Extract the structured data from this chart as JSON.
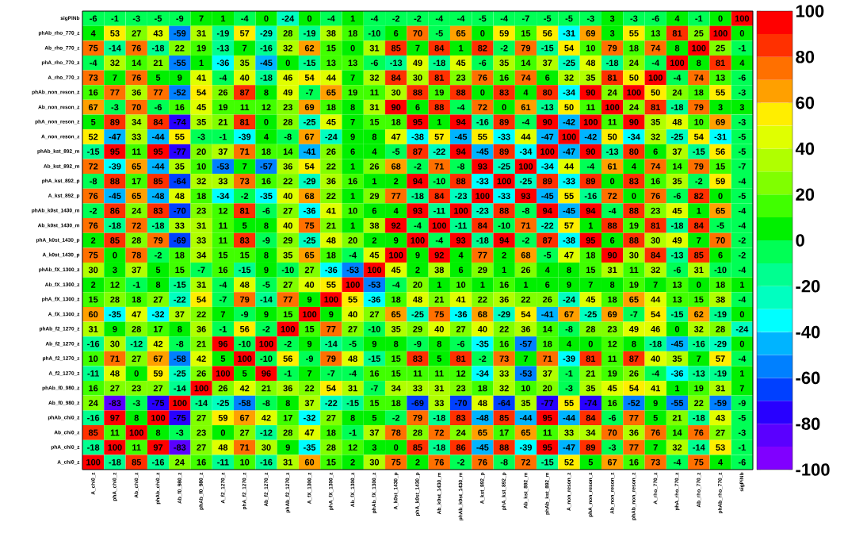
{
  "chart_data": {
    "type": "heatmap",
    "categories": [
      "A_chi0_z",
      "phA_chi0_z",
      "Ab_chi0_z",
      "phAb_chi0_z",
      "Ab_f0_980_z",
      "phAb_f0_980_z",
      "A_f2_1270_z",
      "phA_f2_1270_z",
      "Ab_f2_1270_z",
      "phAb_f2_1270_z",
      "A_fX_1300_z",
      "phA_fX_1300_z",
      "Ab_fX_1300_z",
      "phAb_fX_1300_z",
      "A_k0st_1430_p",
      "phA_k0st_1430_p",
      "Ab_k0st_1430_m",
      "phAb_k0st_1430_m",
      "A_kst_892_p",
      "phA_kst_892_p",
      "Ab_kst_892_m",
      "phAb_kst_892_m",
      "A_non_reson_z",
      "phA_non_reson_z",
      "Ab_non_reson_z",
      "phAb_non_reson_z",
      "A_rho_770_z",
      "phA_rho_770_z",
      "Ab_rho_770_z",
      "phAb_rho_770_z",
      "sigPiNb"
    ],
    "y_categories": [
      "sigPiNb",
      "phAb_rho_770_z",
      "Ab_rho_770_z",
      "phA_rho_770_z",
      "A_rho_770_z",
      "phAb_non_reson_z",
      "Ab_non_reson_z",
      "phA_non_reson_z",
      "A_non_reson_z",
      "phAb_kst_892_m",
      "Ab_kst_892_m",
      "phA_kst_892_p",
      "A_kst_892_p",
      "phAb_k0st_1430_m",
      "Ab_k0st_1430_m",
      "phA_k0st_1430_p",
      "A_k0st_1430_p",
      "phAb_fX_1300_z",
      "Ab_fX_1300_z",
      "phA_fX_1300_z",
      "A_fX_1300_z",
      "phAb_f2_1270_z",
      "Ab_f2_1270_z",
      "phA_f2_1270_z",
      "A_f2_1270_z",
      "phAb_f0_980_z",
      "Ab_f0_980_z",
      "phAb_chi0_z",
      "Ab_chi0_z",
      "phA_chi0_z",
      "A_chi0_z"
    ],
    "cells": [
      [
        -6,
        -1,
        -3,
        -5,
        -9,
        7,
        1,
        -4,
        0,
        -24,
        0,
        -4,
        1,
        -4,
        -2,
        -2,
        -4,
        -4,
        -5,
        -4,
        -7,
        -5,
        -5,
        -3,
        3,
        -3,
        -6,
        4,
        -1,
        0,
        100
      ],
      [
        4,
        53,
        27,
        43,
        -59,
        31,
        -19,
        57,
        -29,
        28,
        -19,
        38,
        18,
        -10,
        6,
        70,
        -5,
        65,
        0,
        59,
        15,
        56,
        -31,
        69,
        3,
        55,
        13,
        81,
        25,
        100,
        0
      ],
      [
        75,
        -14,
        76,
        -18,
        22,
        19,
        -13,
        7,
        -16,
        32,
        62,
        15,
        0,
        31,
        85,
        7,
        84,
        1,
        82,
        -2,
        79,
        -15,
        54,
        10,
        79,
        18,
        74,
        8,
        100,
        25,
        -1
      ],
      [
        -4,
        32,
        14,
        21,
        -55,
        1,
        -36,
        35,
        -45,
        0,
        -15,
        13,
        13,
        -6,
        -13,
        49,
        -18,
        45,
        -6,
        35,
        14,
        37,
        -25,
        48,
        -18,
        24,
        -4,
        100,
        8,
        81,
        4
      ],
      [
        73,
        7,
        76,
        5,
        9,
        41,
        -4,
        40,
        -18,
        46,
        54,
        44,
        7,
        32,
        84,
        30,
        81,
        23,
        76,
        16,
        74,
        6,
        32,
        35,
        81,
        50,
        100,
        -4,
        74,
        13,
        -6
      ],
      [
        16,
        77,
        36,
        77,
        -52,
        54,
        26,
        87,
        8,
        49,
        -7,
        65,
        19,
        11,
        30,
        88,
        19,
        88,
        0,
        83,
        4,
        80,
        -34,
        90,
        24,
        100,
        50,
        24,
        18,
        55,
        -3
      ],
      [
        67,
        -3,
        70,
        -6,
        16,
        45,
        19,
        11,
        12,
        23,
        69,
        18,
        8,
        31,
        90,
        6,
        88,
        -4,
        72,
        0,
        61,
        -13,
        50,
        11,
        100,
        24,
        81,
        -18,
        79,
        3,
        3
      ],
      [
        5,
        89,
        34,
        84,
        -74,
        35,
        21,
        81,
        0,
        28,
        -25,
        45,
        7,
        15,
        18,
        95,
        1,
        94,
        -16,
        89,
        -4,
        90,
        -42,
        100,
        11,
        90,
        35,
        48,
        10,
        69,
        -3
      ],
      [
        52,
        -47,
        33,
        -44,
        55,
        -3,
        -1,
        -39,
        4,
        -8,
        67,
        -24,
        9,
        8,
        47,
        -38,
        57,
        -45,
        55,
        -33,
        44,
        -47,
        100,
        -42,
        50,
        -34,
        32,
        -25,
        54,
        -31,
        -5
      ],
      [
        -15,
        95,
        11,
        95,
        -77,
        20,
        37,
        71,
        18,
        14,
        -41,
        26,
        6,
        4,
        -5,
        87,
        -22,
        94,
        -45,
        89,
        -34,
        100,
        -47,
        90,
        -13,
        80,
        6,
        37,
        -15,
        56,
        -5
      ],
      [
        72,
        -39,
        65,
        -44,
        35,
        10,
        -53,
        7,
        -57,
        36,
        54,
        22,
        1,
        26,
        68,
        -2,
        71,
        -8,
        93,
        -25,
        100,
        -34,
        44,
        -4,
        61,
        4,
        74,
        14,
        79,
        15,
        -7
      ],
      [
        -8,
        88,
        17,
        85,
        -64,
        32,
        33,
        73,
        16,
        22,
        -29,
        36,
        16,
        1,
        2,
        94,
        -10,
        88,
        -33,
        100,
        -25,
        89,
        -33,
        89,
        0,
        83,
        16,
        35,
        -2,
        59,
        -4
      ],
      [
        76,
        -45,
        65,
        -48,
        48,
        18,
        -34,
        -2,
        -35,
        40,
        68,
        22,
        1,
        29,
        77,
        -18,
        84,
        -23,
        100,
        -33,
        93,
        -45,
        55,
        -16,
        72,
        0,
        76,
        -6,
        82,
        0,
        -5
      ],
      [
        -2,
        86,
        24,
        83,
        -70,
        23,
        12,
        81,
        -6,
        27,
        -36,
        41,
        10,
        6,
        4,
        93,
        -11,
        100,
        -23,
        88,
        -8,
        94,
        -45,
        94,
        -4,
        88,
        23,
        45,
        1,
        65,
        -4
      ],
      [
        76,
        -18,
        72,
        -18,
        33,
        31,
        11,
        5,
        8,
        40,
        75,
        21,
        1,
        38,
        92,
        -4,
        100,
        -11,
        84,
        -10,
        71,
        -22,
        57,
        1,
        88,
        19,
        81,
        -18,
        84,
        -5,
        -4
      ],
      [
        2,
        85,
        28,
        79,
        -69,
        33,
        11,
        83,
        -9,
        29,
        -25,
        48,
        20,
        2,
        9,
        100,
        -4,
        93,
        -18,
        94,
        -2,
        87,
        -38,
        95,
        6,
        88,
        30,
        49,
        7,
        70,
        -2
      ],
      [
        75,
        0,
        78,
        -2,
        18,
        34,
        15,
        15,
        8,
        35,
        65,
        18,
        -4,
        45,
        100,
        9,
        92,
        4,
        77,
        2,
        68,
        -5,
        47,
        18,
        90,
        30,
        84,
        -13,
        85,
        6,
        -2
      ],
      [
        30,
        3,
        37,
        5,
        15,
        -7,
        16,
        -15,
        9,
        -10,
        27,
        -36,
        -53,
        100,
        45,
        2,
        38,
        6,
        29,
        1,
        26,
        4,
        8,
        15,
        31,
        11,
        32,
        -6,
        31,
        -10,
        -4
      ],
      [
        2,
        12,
        -1,
        8,
        -15,
        31,
        -4,
        48,
        -5,
        27,
        40,
        55,
        100,
        -53,
        -4,
        20,
        1,
        10,
        1,
        16,
        1,
        6,
        9,
        7,
        8,
        19,
        7,
        13,
        0,
        18,
        1
      ],
      [
        15,
        28,
        18,
        27,
        -22,
        54,
        -7,
        79,
        -14,
        77,
        9,
        100,
        55,
        -36,
        18,
        48,
        21,
        41,
        22,
        36,
        22,
        26,
        -24,
        45,
        18,
        65,
        44,
        13,
        15,
        38,
        -4
      ],
      [
        60,
        -35,
        47,
        -32,
        37,
        22,
        7,
        -9,
        9,
        15,
        100,
        9,
        40,
        27,
        65,
        -25,
        75,
        -36,
        68,
        -29,
        54,
        -41,
        67,
        -25,
        69,
        -7,
        54,
        -15,
        62,
        -19,
        0
      ],
      [
        31,
        9,
        28,
        17,
        8,
        36,
        -1,
        56,
        -2,
        100,
        15,
        77,
        27,
        -10,
        35,
        29,
        40,
        27,
        40,
        22,
        36,
        14,
        -8,
        28,
        23,
        49,
        46,
        0,
        32,
        28,
        -24
      ],
      [
        -16,
        30,
        -12,
        42,
        -8,
        21,
        96,
        -10,
        100,
        -2,
        9,
        -14,
        -5,
        9,
        8,
        -9,
        8,
        -6,
        -35,
        16,
        -57,
        18,
        4,
        0,
        12,
        8,
        -18,
        -45,
        -16,
        -29,
        0
      ],
      [
        10,
        71,
        27,
        67,
        -58,
        42,
        5,
        100,
        -10,
        56,
        -9,
        79,
        48,
        -15,
        15,
        83,
        5,
        81,
        -2,
        73,
        7,
        71,
        -39,
        81,
        11,
        87,
        40,
        35,
        7,
        57,
        -4
      ],
      [
        -11,
        48,
        0,
        59,
        -25,
        26,
        100,
        5,
        96,
        -1,
        7,
        -7,
        -4,
        16,
        15,
        11,
        11,
        12,
        -34,
        33,
        -53,
        37,
        -1,
        21,
        19,
        26,
        -4,
        -36,
        -13,
        -19,
        1
      ],
      [
        16,
        27,
        23,
        27,
        -14,
        100,
        26,
        42,
        21,
        36,
        22,
        54,
        31,
        -7,
        34,
        33,
        31,
        23,
        18,
        32,
        10,
        20,
        -3,
        35,
        45,
        54,
        41,
        1,
        19,
        31,
        7
      ],
      [
        24,
        -83,
        -3,
        -75,
        100,
        -14,
        -25,
        -58,
        -8,
        8,
        37,
        -22,
        -15,
        15,
        18,
        -69,
        33,
        -70,
        48,
        -64,
        35,
        -77,
        55,
        -74,
        16,
        -52,
        9,
        -55,
        22,
        -59,
        -9
      ],
      [
        -16,
        97,
        8,
        100,
        -75,
        27,
        59,
        67,
        42,
        17,
        -32,
        27,
        8,
        5,
        -2,
        79,
        -18,
        83,
        -48,
        85,
        -44,
        95,
        -44,
        84,
        -6,
        77,
        5,
        21,
        -18,
        43,
        -5
      ],
      [
        85,
        11,
        100,
        8,
        -3,
        23,
        0,
        27,
        -12,
        28,
        47,
        18,
        -1,
        37,
        78,
        28,
        72,
        24,
        65,
        17,
        65,
        11,
        33,
        34,
        70,
        36,
        76,
        14,
        76,
        27,
        -3
      ],
      [
        -18,
        100,
        11,
        97,
        -83,
        27,
        48,
        71,
        30,
        9,
        -35,
        28,
        12,
        3,
        0,
        85,
        -18,
        86,
        -45,
        88,
        -39,
        95,
        -47,
        89,
        -3,
        77,
        7,
        32,
        -14,
        53,
        -1
      ],
      [
        100,
        -18,
        85,
        -16,
        24,
        16,
        -11,
        10,
        -16,
        31,
        60,
        15,
        2,
        30,
        75,
        2,
        76,
        -2,
        76,
        -8,
        72,
        -15,
        52,
        5,
        67,
        16,
        73,
        -4,
        75,
        4,
        -6
      ]
    ],
    "clim": [
      -100,
      100
    ],
    "cticks": [
      -100,
      -80,
      -60,
      -40,
      -20,
      0,
      20,
      40,
      60,
      80,
      100
    ],
    "data_labels": true
  }
}
